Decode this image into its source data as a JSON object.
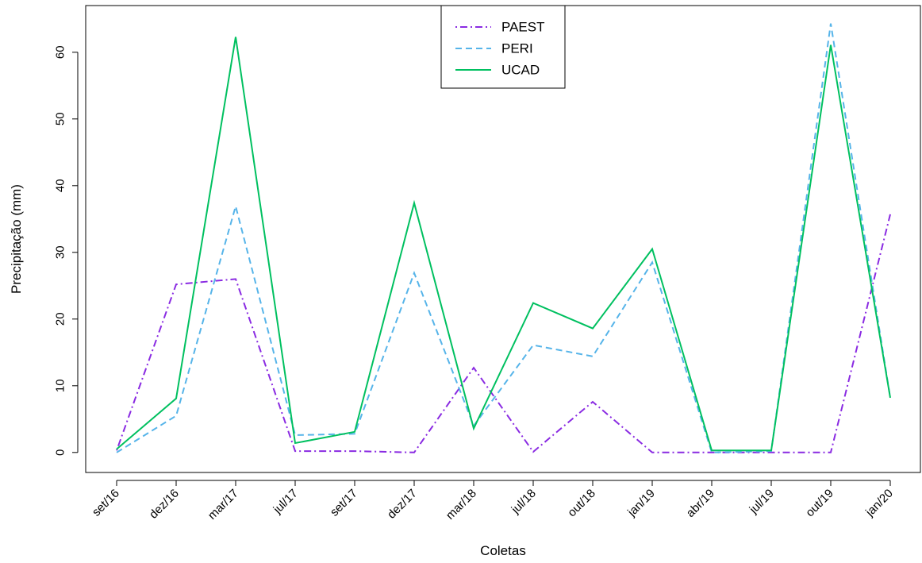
{
  "chart_data": {
    "type": "line",
    "title": "",
    "xlabel": "Coletas",
    "ylabel": "Precipitação (mm)",
    "categories": [
      "set/16",
      "dez/16",
      "mar/17",
      "jul/17",
      "set/17",
      "dez/17",
      "mar/18",
      "jul/18",
      "out/18",
      "jan/19",
      "abr/19",
      "jul/19",
      "out/19",
      "jan/20"
    ],
    "yticks": [
      0,
      10,
      20,
      30,
      40,
      50,
      60
    ],
    "ylim": [
      -3,
      67
    ],
    "grid": false,
    "legend_position": "top-center",
    "series": [
      {
        "name": "PAEST",
        "color": "#8a2be2",
        "dash": "dotdash",
        "values": [
          0.3,
          25.2,
          26.0,
          0.2,
          0.2,
          0.0,
          12.7,
          0.1,
          7.6,
          0.0,
          0.0,
          0.0,
          0.0,
          35.7
        ]
      },
      {
        "name": "PERI",
        "color": "#56b4e9",
        "dash": "dashed",
        "values": [
          0.0,
          5.5,
          36.9,
          2.6,
          2.8,
          26.9,
          4.0,
          16.1,
          14.4,
          28.5,
          0.0,
          0.2,
          64.3,
          8.2
        ]
      },
      {
        "name": "UCAD",
        "color": "#00c060",
        "dash": "solid",
        "values": [
          0.5,
          8.1,
          62.3,
          1.4,
          3.1,
          37.4,
          3.6,
          22.4,
          18.6,
          30.5,
          0.3,
          0.3,
          61.1,
          8.2
        ]
      }
    ]
  }
}
